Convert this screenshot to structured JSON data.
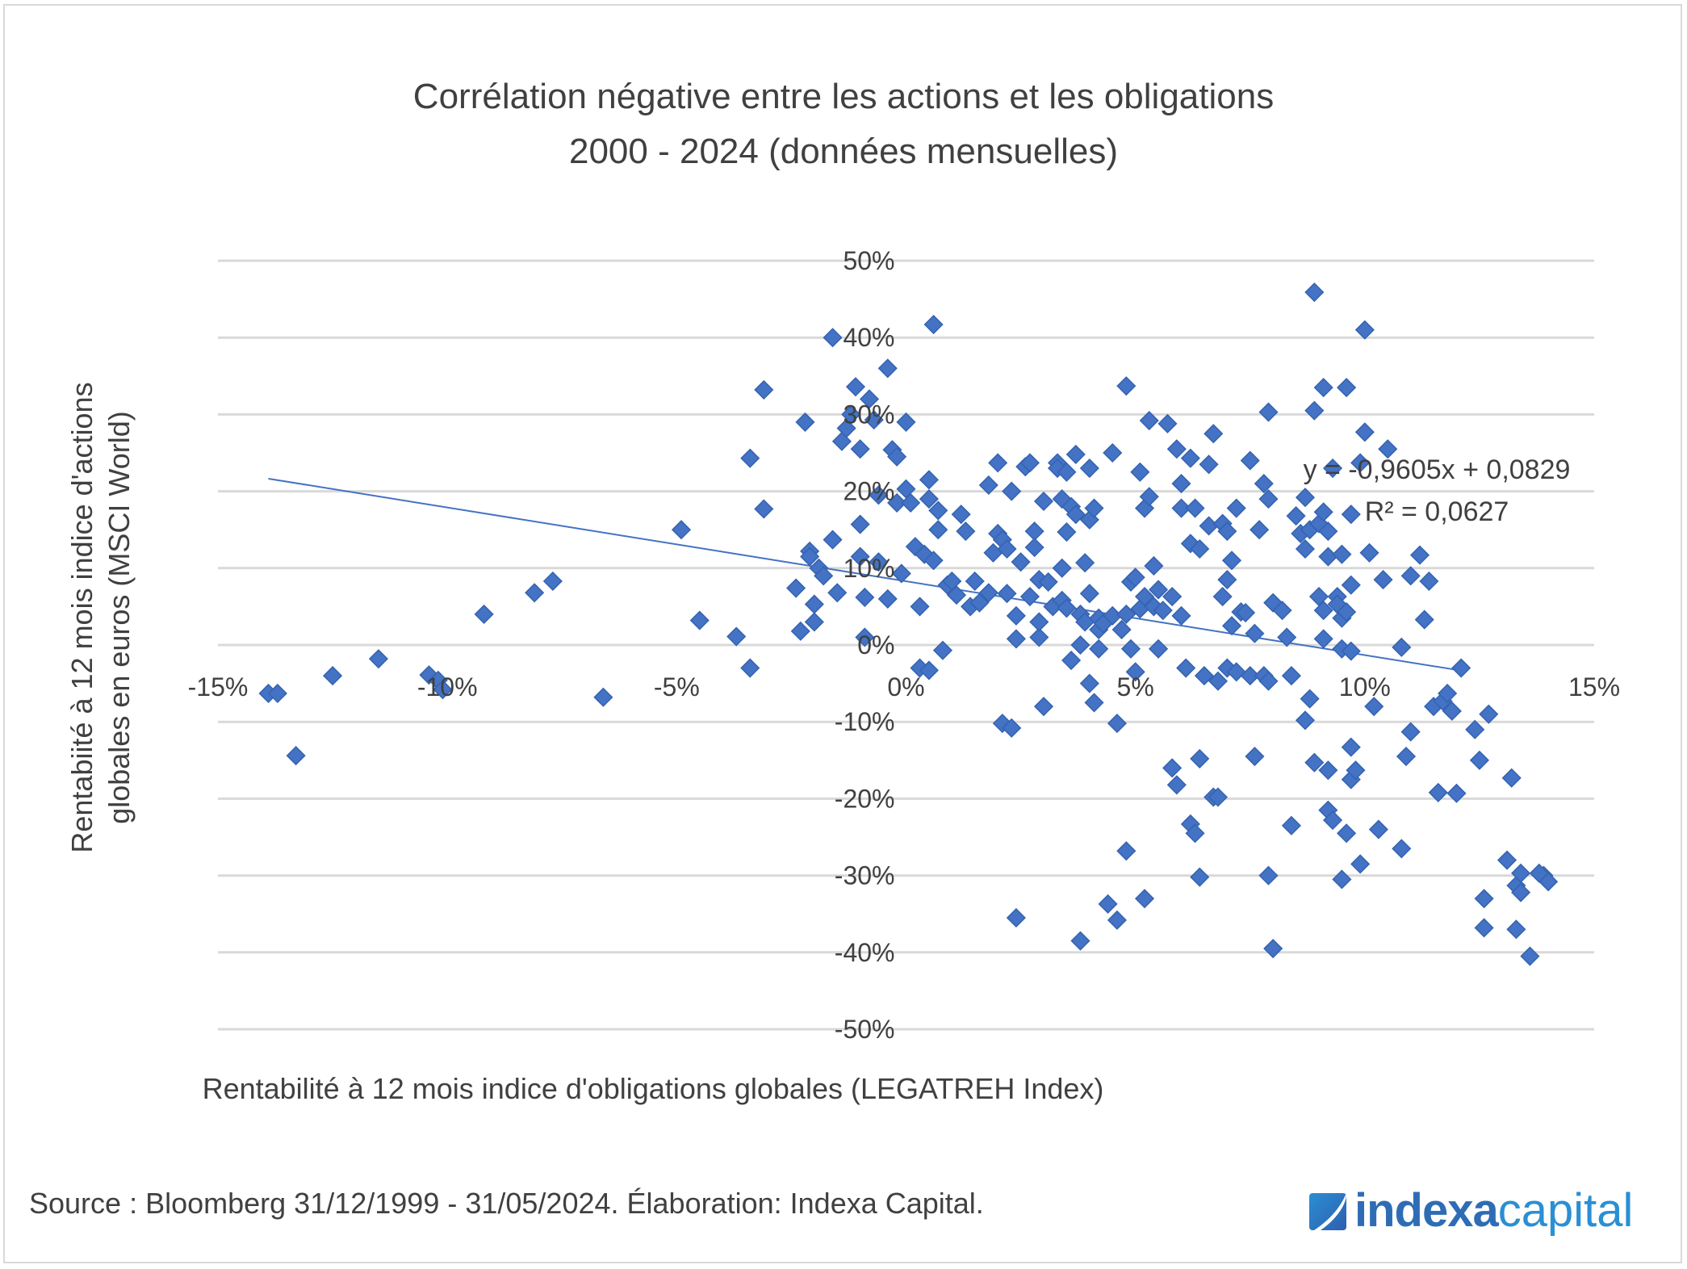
{
  "chart_data": {
    "type": "scatter",
    "title": [
      "Corrélation négative entre les actions et les obligations",
      "2000 - 2024 (données mensuelles)"
    ],
    "xlabel": "Rentabilité à 12 mois indice d'obligations globales (LEGATREH Index)",
    "ylabel": [
      "Rentabiité à 12 mois indice d'actions",
      "globales en euros (MSCI World)"
    ],
    "xlim": [
      -0.15,
      0.15
    ],
    "ylim": [
      -0.5,
      0.5
    ],
    "x_ticks": [
      -0.15,
      -0.1,
      -0.05,
      0.0,
      0.05,
      0.1,
      0.15
    ],
    "x_tick_labels": [
      "-15%",
      "-10%",
      "-5%",
      "0%",
      "5%",
      "10%",
      "15%"
    ],
    "y_ticks": [
      0.5,
      0.4,
      0.3,
      0.2,
      0.1,
      0.0,
      -0.1,
      -0.2,
      -0.3,
      -0.4,
      -0.5
    ],
    "y_tick_labels": [
      "50%",
      "40%",
      "30%",
      "20%",
      "10%",
      "0%",
      "-10%",
      "-20%",
      "-30%",
      "-40%",
      "-50%"
    ],
    "grid": "horizontal",
    "legend": "none",
    "marker": "diamond",
    "series_color": "#4472c4",
    "trendline": {
      "type": "linear",
      "slope": -0.9605,
      "intercept": 0.0829,
      "x_range": [
        -0.139,
        0.12
      ],
      "equation_label": "y = -0,9605x + 0,0829",
      "r2_label": "R² = 0,0627",
      "color": "#4472c4"
    },
    "series": [
      {
        "name": "MSCI World vs LEGATREH",
        "points": [
          [
            -0.139,
            -0.063
          ],
          [
            -0.137,
            -0.063
          ],
          [
            -0.133,
            -0.144
          ],
          [
            -0.125,
            -0.04
          ],
          [
            -0.115,
            -0.018
          ],
          [
            -0.104,
            -0.039
          ],
          [
            -0.102,
            -0.046
          ],
          [
            -0.101,
            -0.058
          ],
          [
            -0.092,
            0.04
          ],
          [
            -0.081,
            0.068
          ],
          [
            -0.077,
            0.083
          ],
          [
            -0.066,
            -0.068
          ],
          [
            -0.049,
            0.15
          ],
          [
            -0.045,
            0.032
          ],
          [
            -0.037,
            0.011
          ],
          [
            -0.034,
            -0.03
          ],
          [
            -0.034,
            0.243
          ],
          [
            -0.031,
            0.177
          ],
          [
            -0.031,
            0.332
          ],
          [
            -0.024,
            0.074
          ],
          [
            -0.023,
            0.018
          ],
          [
            -0.022,
            0.29
          ],
          [
            -0.021,
            0.122
          ],
          [
            -0.021,
            0.115
          ],
          [
            -0.02,
            0.03
          ],
          [
            -0.02,
            0.053
          ],
          [
            -0.019,
            0.1
          ],
          [
            -0.018,
            0.09
          ],
          [
            -0.016,
            0.137
          ],
          [
            -0.016,
            0.4
          ],
          [
            -0.015,
            0.068
          ],
          [
            -0.014,
            0.265
          ],
          [
            -0.013,
            0.282
          ],
          [
            -0.012,
            0.3
          ],
          [
            -0.011,
            0.336
          ],
          [
            -0.01,
            0.255
          ],
          [
            -0.01,
            0.115
          ],
          [
            -0.01,
            0.157
          ],
          [
            -0.009,
            0.01
          ],
          [
            -0.009,
            0.062
          ],
          [
            -0.008,
            0.32
          ],
          [
            -0.007,
            0.293
          ],
          [
            -0.006,
            0.195
          ],
          [
            -0.006,
            0.108
          ],
          [
            -0.004,
            0.36
          ],
          [
            -0.004,
            0.06
          ],
          [
            -0.003,
            0.254
          ],
          [
            -0.002,
            0.245
          ],
          [
            -0.002,
            0.185
          ],
          [
            -0.001,
            0.093
          ],
          [
            0.0,
            0.29
          ],
          [
            0.0,
            0.203
          ],
          [
            0.001,
            0.185
          ],
          [
            0.002,
            0.128
          ],
          [
            0.003,
            0.05
          ],
          [
            0.003,
            -0.03
          ],
          [
            0.004,
            0.118
          ],
          [
            0.005,
            0.19
          ],
          [
            0.005,
            -0.033
          ],
          [
            0.005,
            0.215
          ],
          [
            0.006,
            0.11
          ],
          [
            0.007,
            0.15
          ],
          [
            0.007,
            0.175
          ],
          [
            0.006,
            0.417
          ],
          [
            0.008,
            -0.007
          ],
          [
            0.009,
            0.078
          ],
          [
            0.01,
            0.083
          ],
          [
            0.011,
            0.065
          ],
          [
            0.012,
            0.17
          ],
          [
            0.013,
            0.148
          ],
          [
            0.014,
            0.05
          ],
          [
            0.015,
            0.083
          ],
          [
            0.016,
            0.055
          ],
          [
            0.018,
            0.068
          ],
          [
            0.018,
            0.208
          ],
          [
            0.019,
            0.12
          ],
          [
            0.02,
            0.237
          ],
          [
            0.02,
            0.145
          ],
          [
            0.021,
            0.137
          ],
          [
            0.021,
            -0.102
          ],
          [
            0.022,
            0.067
          ],
          [
            0.022,
            0.125
          ],
          [
            0.023,
            -0.108
          ],
          [
            0.023,
            0.2
          ],
          [
            0.024,
            0.038
          ],
          [
            0.024,
            -0.355
          ],
          [
            0.024,
            0.008
          ],
          [
            0.025,
            0.108
          ],
          [
            0.026,
            0.232
          ],
          [
            0.027,
            0.237
          ],
          [
            0.027,
            0.063
          ],
          [
            0.028,
            0.148
          ],
          [
            0.028,
            0.127
          ],
          [
            0.029,
            0.085
          ],
          [
            0.029,
            0.01
          ],
          [
            0.029,
            0.03
          ],
          [
            0.03,
            0.187
          ],
          [
            0.03,
            -0.08
          ],
          [
            0.031,
            0.082
          ],
          [
            0.032,
            0.05
          ],
          [
            0.033,
            0.237
          ],
          [
            0.033,
            0.23
          ],
          [
            0.034,
            0.058
          ],
          [
            0.034,
            0.1
          ],
          [
            0.034,
            0.19
          ],
          [
            0.035,
            0.147
          ],
          [
            0.035,
            0.225
          ],
          [
            0.035,
            0.048
          ],
          [
            0.036,
            -0.02
          ],
          [
            0.036,
            0.18
          ],
          [
            0.037,
            0.248
          ],
          [
            0.037,
            0.17
          ],
          [
            0.038,
            0.04
          ],
          [
            0.038,
            -0.385
          ],
          [
            0.038,
            0.0
          ],
          [
            0.039,
            0.03
          ],
          [
            0.039,
            0.107
          ],
          [
            0.04,
            0.163
          ],
          [
            0.04,
            0.067
          ],
          [
            0.04,
            0.23
          ],
          [
            0.04,
            -0.05
          ],
          [
            0.041,
            -0.075
          ],
          [
            0.041,
            0.178
          ],
          [
            0.042,
            0.02
          ],
          [
            0.042,
            -0.005
          ],
          [
            0.042,
            0.035
          ],
          [
            0.043,
            0.028
          ],
          [
            0.044,
            -0.337
          ],
          [
            0.045,
            0.25
          ],
          [
            0.045,
            0.038
          ],
          [
            0.046,
            -0.358
          ],
          [
            0.046,
            -0.102
          ],
          [
            0.047,
            0.02
          ],
          [
            0.048,
            0.337
          ],
          [
            0.048,
            0.04
          ],
          [
            0.048,
            -0.268
          ],
          [
            0.049,
            0.082
          ],
          [
            0.049,
            -0.005
          ],
          [
            0.05,
            0.088
          ],
          [
            0.05,
            -0.035
          ],
          [
            0.051,
            0.047
          ],
          [
            0.051,
            0.225
          ],
          [
            0.052,
            0.063
          ],
          [
            0.052,
            -0.33
          ],
          [
            0.052,
            0.178
          ],
          [
            0.053,
            0.292
          ],
          [
            0.053,
            0.193
          ],
          [
            0.054,
            0.103
          ],
          [
            0.054,
            0.05
          ],
          [
            0.055,
            0.072
          ],
          [
            0.055,
            -0.005
          ],
          [
            0.056,
            0.045
          ],
          [
            0.057,
            0.288
          ],
          [
            0.058,
            0.063
          ],
          [
            0.058,
            -0.16
          ],
          [
            0.059,
            -0.182
          ],
          [
            0.059,
            0.255
          ],
          [
            0.06,
            0.21
          ],
          [
            0.06,
            0.178
          ],
          [
            0.06,
            0.038
          ],
          [
            0.061,
            -0.03
          ],
          [
            0.062,
            0.243
          ],
          [
            0.062,
            0.132
          ],
          [
            0.062,
            -0.233
          ],
          [
            0.063,
            -0.245
          ],
          [
            0.063,
            0.178
          ],
          [
            0.064,
            0.125
          ],
          [
            0.064,
            -0.148
          ],
          [
            0.064,
            -0.302
          ],
          [
            0.065,
            -0.04
          ],
          [
            0.066,
            0.235
          ],
          [
            0.066,
            0.155
          ],
          [
            0.067,
            0.275
          ],
          [
            0.067,
            -0.198
          ],
          [
            0.068,
            -0.198
          ],
          [
            0.068,
            -0.047
          ],
          [
            0.069,
            0.158
          ],
          [
            0.069,
            0.063
          ],
          [
            0.07,
            0.148
          ],
          [
            0.07,
            -0.03
          ],
          [
            0.07,
            0.085
          ],
          [
            0.071,
            0.025
          ],
          [
            0.071,
            0.11
          ],
          [
            0.072,
            -0.035
          ],
          [
            0.072,
            0.178
          ],
          [
            0.073,
            0.043
          ],
          [
            0.074,
            0.042
          ],
          [
            0.075,
            -0.04
          ],
          [
            0.075,
            0.24
          ],
          [
            0.076,
            -0.145
          ],
          [
            0.076,
            0.015
          ],
          [
            0.077,
            0.15
          ],
          [
            0.078,
            0.21
          ],
          [
            0.078,
            -0.04
          ],
          [
            0.079,
            0.19
          ],
          [
            0.079,
            0.303
          ],
          [
            0.079,
            -0.047
          ],
          [
            0.079,
            -0.3
          ],
          [
            0.08,
            -0.395
          ],
          [
            0.08,
            0.055
          ],
          [
            0.082,
            0.045
          ],
          [
            0.083,
            0.01
          ],
          [
            0.084,
            -0.235
          ],
          [
            0.084,
            -0.04
          ],
          [
            0.085,
            0.168
          ],
          [
            0.086,
            0.145
          ],
          [
            0.087,
            0.192
          ],
          [
            0.087,
            0.125
          ],
          [
            0.087,
            -0.098
          ],
          [
            0.088,
            0.15
          ],
          [
            0.088,
            -0.07
          ],
          [
            0.089,
            0.305
          ],
          [
            0.089,
            -0.153
          ],
          [
            0.089,
            0.459
          ],
          [
            0.09,
            0.063
          ],
          [
            0.09,
            0.158
          ],
          [
            0.091,
            0.173
          ],
          [
            0.091,
            0.045
          ],
          [
            0.091,
            0.008
          ],
          [
            0.091,
            0.335
          ],
          [
            0.092,
            0.148
          ],
          [
            0.092,
            0.115
          ],
          [
            0.092,
            -0.163
          ],
          [
            0.092,
            -0.215
          ],
          [
            0.093,
            0.23
          ],
          [
            0.093,
            -0.228
          ],
          [
            0.094,
            0.063
          ],
          [
            0.094,
            0.053
          ],
          [
            0.095,
            -0.305
          ],
          [
            0.095,
            0.118
          ],
          [
            0.095,
            0.035
          ],
          [
            0.095,
            -0.005
          ],
          [
            0.096,
            0.335
          ],
          [
            0.096,
            0.043
          ],
          [
            0.096,
            -0.245
          ],
          [
            0.097,
            0.078
          ],
          [
            0.097,
            -0.175
          ],
          [
            0.097,
            -0.133
          ],
          [
            0.097,
            -0.008
          ],
          [
            0.097,
            0.17
          ],
          [
            0.098,
            -0.163
          ],
          [
            0.099,
            0.237
          ],
          [
            0.099,
            -0.285
          ],
          [
            0.1,
            0.41
          ],
          [
            0.1,
            0.277
          ],
          [
            0.101,
            0.12
          ],
          [
            0.102,
            -0.08
          ],
          [
            0.103,
            -0.24
          ],
          [
            0.104,
            0.085
          ],
          [
            0.105,
            0.255
          ],
          [
            0.108,
            -0.265
          ],
          [
            0.109,
            -0.145
          ],
          [
            0.11,
            0.09
          ],
          [
            0.11,
            -0.113
          ],
          [
            0.112,
            0.117
          ],
          [
            0.113,
            0.033
          ],
          [
            0.114,
            0.083
          ],
          [
            0.115,
            -0.08
          ],
          [
            0.116,
            -0.192
          ],
          [
            0.117,
            -0.073
          ],
          [
            0.118,
            -0.063
          ],
          [
            0.119,
            -0.086
          ],
          [
            0.12,
            -0.193
          ],
          [
            0.121,
            -0.03
          ],
          [
            0.124,
            -0.11
          ],
          [
            0.125,
            -0.15
          ],
          [
            0.126,
            -0.33
          ],
          [
            0.126,
            -0.368
          ],
          [
            0.127,
            -0.09
          ],
          [
            0.131,
            -0.28
          ],
          [
            0.132,
            -0.173
          ],
          [
            0.133,
            -0.37
          ],
          [
            0.133,
            -0.313
          ],
          [
            0.134,
            -0.322
          ],
          [
            0.134,
            -0.297
          ],
          [
            0.136,
            -0.405
          ],
          [
            0.139,
            -0.3
          ],
          [
            0.14,
            -0.308
          ],
          [
            0.138,
            -0.297
          ],
          [
            0.108,
            -0.003
          ]
        ]
      }
    ]
  },
  "footer": {
    "source": "Source : Bloomberg 31/12/1999 - 31/05/2024. Élaboration: Indexa Capital.",
    "logo_part1": "indexa",
    "logo_part2": "capital"
  },
  "colors": {
    "marker": "#4472c4",
    "marker_border": "#3563b0",
    "gridline": "#d9d9d9",
    "text": "#404040",
    "logo_dark": "#2e6db5",
    "logo_light": "#2a8fd4"
  }
}
